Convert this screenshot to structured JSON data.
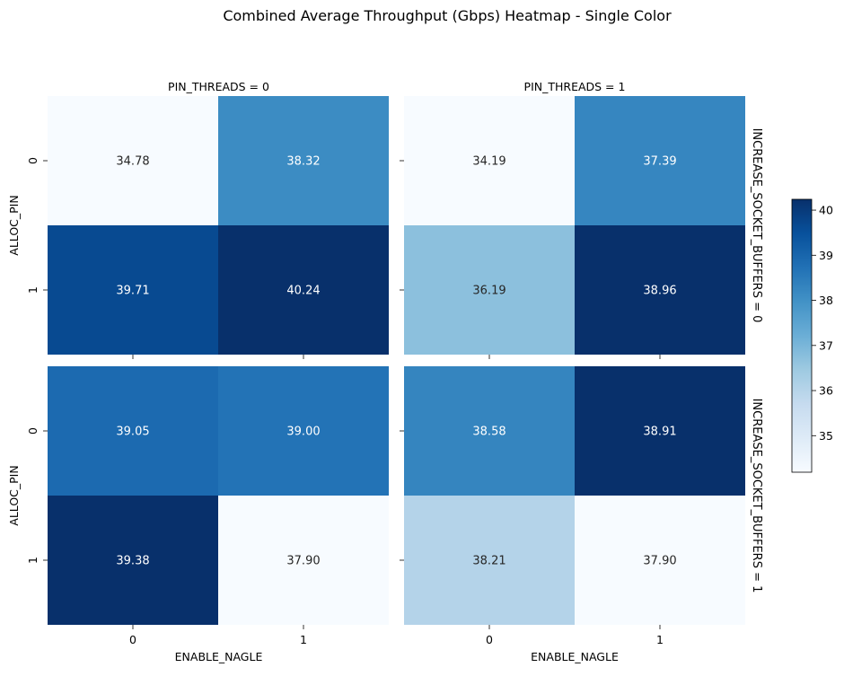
{
  "chart_data": {
    "type": "heatmap",
    "title": "Combined Average Throughput (Gbps) Heatmap - Single Color",
    "xlabel": "ENABLE_NAGLE",
    "ylabel": "ALLOC_PIN",
    "x_categories": [
      "0",
      "1"
    ],
    "y_categories": [
      "0",
      "1"
    ],
    "col_facets": [
      "PIN_THREADS = 0",
      "PIN_THREADS = 1"
    ],
    "row_facets": [
      "INCREASE_SOCKET_BUFFERS = 0",
      "INCREASE_SOCKET_BUFFERS = 1"
    ],
    "panels": [
      {
        "row": 0,
        "col": 0,
        "values": [
          [
            34.78,
            38.32
          ],
          [
            39.71,
            40.24
          ]
        ],
        "labels": [
          [
            "34.78",
            "38.32"
          ],
          [
            "39.71",
            "40.24"
          ]
        ]
      },
      {
        "row": 0,
        "col": 1,
        "values": [
          [
            34.19,
            37.39
          ],
          [
            36.19,
            38.96
          ]
        ],
        "labels": [
          [
            "34.19",
            "37.39"
          ],
          [
            "36.19",
            "38.96"
          ]
        ]
      },
      {
        "row": 1,
        "col": 0,
        "values": [
          [
            39.05,
            39.0
          ],
          [
            39.38,
            37.9
          ]
        ],
        "labels": [
          [
            "39.05",
            "39.00"
          ],
          [
            "39.38",
            "37.90"
          ]
        ]
      },
      {
        "row": 1,
        "col": 1,
        "values": [
          [
            38.58,
            38.91
          ],
          [
            38.21,
            37.9
          ]
        ],
        "labels": [
          [
            "38.58",
            "38.91"
          ],
          [
            "38.21",
            "37.90"
          ]
        ]
      }
    ],
    "colormap": "Blues",
    "colorbar": {
      "ticks": [
        "35",
        "36",
        "37",
        "38",
        "39",
        "40"
      ],
      "tick_values": [
        35,
        36,
        37,
        38,
        39,
        40
      ],
      "range": [
        34.19,
        40.24
      ]
    }
  }
}
